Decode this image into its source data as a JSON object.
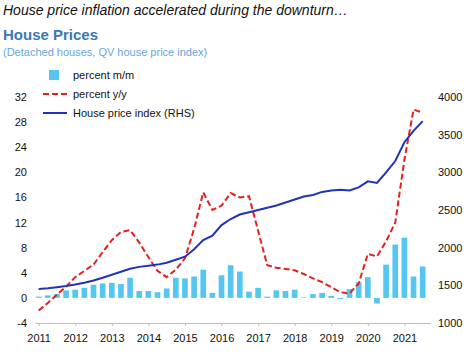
{
  "chart_data": {
    "type": "bar",
    "annotations": [
      "House price inflation accelerated during the downturn…"
    ],
    "title": "House Prices",
    "subtitle": "(Detached houses, QV house price index)",
    "x": [
      2011,
      2011.25,
      2011.5,
      2011.75,
      2012,
      2012.25,
      2012.5,
      2012.75,
      2013,
      2013.25,
      2013.5,
      2013.75,
      2014,
      2014.25,
      2014.5,
      2014.75,
      2015,
      2015.25,
      2015.5,
      2015.75,
      2016,
      2016.25,
      2016.5,
      2016.75,
      2017,
      2017.25,
      2017.5,
      2017.75,
      2018,
      2018.25,
      2018.5,
      2018.75,
      2019,
      2019.25,
      2019.5,
      2019.75,
      2020,
      2020.25,
      2020.5,
      2020.75,
      2021,
      2021.25,
      2021.5
    ],
    "xlim": [
      2010.9,
      2021.7
    ],
    "xticks": [
      2011,
      2012,
      2013,
      2014,
      2015,
      2016,
      2017,
      2018,
      2019,
      2020,
      2021
    ],
    "ylim": [
      -4,
      32
    ],
    "yticks": [
      -4,
      0,
      4,
      8,
      12,
      16,
      20,
      24,
      28,
      32
    ],
    "y2lim": [
      1000,
      4000
    ],
    "y2ticks": [
      1000,
      1500,
      2000,
      2500,
      3000,
      3500,
      4000
    ],
    "grid": false,
    "legend": "upper left",
    "series": [
      {
        "name": "percent m/m",
        "type": "bar",
        "color": "#55c6f2",
        "values": [
          0.2,
          0.4,
          0.6,
          1.2,
          1.3,
          1.6,
          2.1,
          2.3,
          2.4,
          2.2,
          3.2,
          1.1,
          1.1,
          0.9,
          1.5,
          3.2,
          3.1,
          3.4,
          4.5,
          0.8,
          3.6,
          5.2,
          4.2,
          1.0,
          1.6,
          0.2,
          1.2,
          1.1,
          1.3,
          0.1,
          0.6,
          0.8,
          0.3,
          -0.2,
          1.4,
          2.5,
          3.3,
          -0.9,
          5.3,
          8.5,
          9.6,
          3.4,
          5.0
        ]
      },
      {
        "name": "percent y/y",
        "type": "line",
        "color": "#e3211c",
        "line_style": "dashed",
        "values": [
          -2.0,
          -0.8,
          0.5,
          1.8,
          3.3,
          4.3,
          5.3,
          7.3,
          9.2,
          10.5,
          10.8,
          8.8,
          6.5,
          4.3,
          3.3,
          4.5,
          6.3,
          11.0,
          16.8,
          14.0,
          14.7,
          16.7,
          16.0,
          16.2,
          10.7,
          5.2,
          4.8,
          4.6,
          4.4,
          3.8,
          3.1,
          2.5,
          1.7,
          0.9,
          0.7,
          2.3,
          7.0,
          6.6,
          9.0,
          12.0,
          22.0,
          30.0,
          29.5
        ]
      },
      {
        "name": "House price index (RHS)",
        "type": "line",
        "color": "#2233b8",
        "line_style": "solid",
        "axis": "y2",
        "values": [
          1450,
          1460,
          1475,
          1490,
          1510,
          1535,
          1565,
          1600,
          1640,
          1680,
          1720,
          1745,
          1760,
          1775,
          1800,
          1840,
          1880,
          1980,
          2100,
          2160,
          2300,
          2380,
          2440,
          2470,
          2500,
          2530,
          2560,
          2600,
          2640,
          2680,
          2700,
          2740,
          2760,
          2770,
          2760,
          2800,
          2880,
          2860,
          3000,
          3150,
          3400,
          3550,
          3680
        ]
      }
    ]
  }
}
